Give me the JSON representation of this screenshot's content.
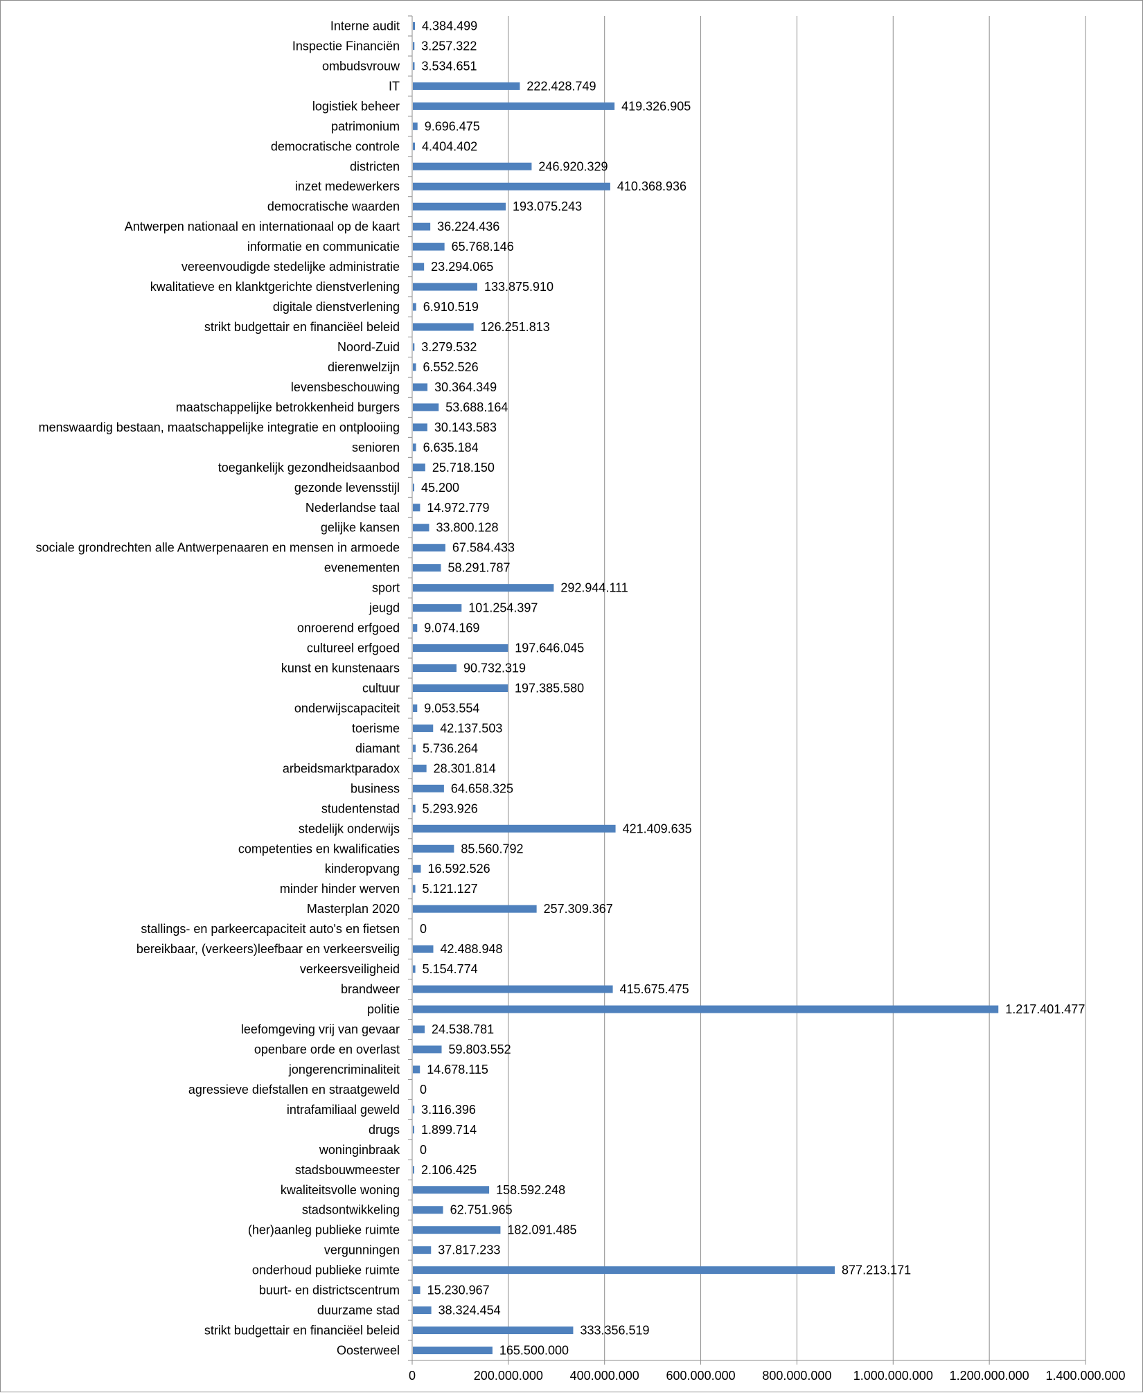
{
  "chart_data": {
    "type": "bar",
    "orientation": "horizontal",
    "title": "",
    "xlabel": "",
    "ylabel": "",
    "xlim": [
      0,
      1400000000
    ],
    "grid": true,
    "legend": "none",
    "bar_color": "#4f81bd",
    "x_ticks": [
      0,
      200000000,
      400000000,
      600000000,
      800000000,
      1000000000,
      1200000000,
      1400000000
    ],
    "x_tick_labels": [
      "0",
      "200.000.000",
      "400.000.000",
      "600.000.000",
      "800.000.000",
      "1.000.000.000",
      "1.200.000.000",
      "1.400.000.000"
    ],
    "categories": [
      "Interne audit",
      "Inspectie Financiën",
      "ombudsvrouw",
      "IT",
      "logistiek beheer",
      "patrimonium",
      "democratische controle",
      "districten",
      "inzet medewerkers",
      "democratische waarden",
      "Antwerpen nationaal en internationaal op de kaart",
      "informatie en communicatie",
      "vereenvoudigde stedelijke administratie",
      "kwalitatieve en klanktgerichte dienstverlening",
      "digitale dienstverlening",
      "strikt budgettair en financiëel beleid",
      "Noord-Zuid",
      "dierenwelzijn",
      "levensbeschouwing",
      "maatschappelijke betrokkenheid burgers",
      "menswaardig bestaan, maatschappelijke integratie en ontplooiing",
      "senioren",
      "toegankelijk gezondheidsaanbod",
      "gezonde levensstijl",
      "Nederlandse taal",
      "gelijke kansen",
      "sociale grondrechten alle Antwerpenaaren en mensen in armoede",
      "evenementen",
      "sport",
      "jeugd",
      "onroerend erfgoed",
      "cultureel erfgoed",
      "kunst en kunstenaars",
      "cultuur",
      "onderwijscapaciteit",
      "toerisme",
      "diamant",
      "arbeidsmarktparadox",
      "business",
      "studentenstad",
      "stedelijk onderwijs",
      "competenties en kwalificaties",
      "kinderopvang",
      "minder hinder werven",
      "Masterplan 2020",
      "stallings- en parkeercapaciteit auto's en fietsen",
      "bereikbaar, (verkeers)leefbaar en verkeersveilig",
      "verkeersveiligheid",
      "brandweer",
      "politie",
      "leefomgeving vrij van gevaar",
      "openbare orde en overlast",
      "jongerencriminaliteit",
      "agressieve diefstallen en straatgeweld",
      "intrafamiliaal geweld",
      "drugs",
      "woninginbraak",
      "stadsbouwmeester",
      "kwaliteitsvolle woning",
      "stadsontwikkeling",
      "(her)aanleg publieke ruimte",
      "vergunningen",
      "onderhoud publieke ruimte",
      "buurt- en districtscentrum",
      "duurzame stad",
      "strikt budgettair en financiëel beleid",
      "Oosterweel"
    ],
    "values": [
      4384499,
      3257322,
      3534651,
      222428749,
      419326905,
      9696475,
      4404402,
      246920329,
      410368936,
      193075243,
      36224436,
      65768146,
      23294065,
      133875910,
      6910519,
      126251813,
      3279532,
      6552526,
      30364349,
      53688164,
      30143583,
      6635184,
      25718150,
      45200,
      14972779,
      33800128,
      67584433,
      58291787,
      292944111,
      101254397,
      9074169,
      197646045,
      90732319,
      197385580,
      9053554,
      42137503,
      5736264,
      28301814,
      64658325,
      5293926,
      421409635,
      85560792,
      16592526,
      5121127,
      257309367,
      0,
      42488948,
      5154774,
      415675475,
      1217401477,
      24538781,
      59803552,
      14678115,
      0,
      3116396,
      1899714,
      0,
      2106425,
      158592248,
      62751965,
      182091485,
      37817233,
      877213171,
      15230967,
      38324454,
      333356519,
      165500000
    ],
    "value_labels": [
      "4.384.499",
      "3.257.322",
      "3.534.651",
      "222.428.749",
      "419.326.905",
      "9.696.475",
      "4.404.402",
      "246.920.329",
      "410.368.936",
      "193.075.243",
      "36.224.436",
      "65.768.146",
      "23.294.065",
      "133.875.910",
      "6.910.519",
      "126.251.813",
      "3.279.532",
      "6.552.526",
      "30.364.349",
      "53.688.164",
      "30.143.583",
      "6.635.184",
      "25.718.150",
      "45.200",
      "14.972.779",
      "33.800.128",
      "67.584.433",
      "58.291.787",
      "292.944.111",
      "101.254.397",
      "9.074.169",
      "197.646.045",
      "90.732.319",
      "197.385.580",
      "9.053.554",
      "42.137.503",
      "5.736.264",
      "28.301.814",
      "64.658.325",
      "5.293.926",
      "421.409.635",
      "85.560.792",
      "16.592.526",
      "5.121.127",
      "257.309.367",
      "0",
      "42.488.948",
      "5.154.774",
      "415.675.475",
      "1.217.401.477",
      "24.538.781",
      "59.803.552",
      "14.678.115",
      "0",
      "3.116.396",
      "1.899.714",
      "0",
      "2.106.425",
      "158.592.248",
      "62.751.965",
      "182.091.485",
      "37.817.233",
      "877.213.171",
      "15.230.967",
      "38.324.454",
      "333.356.519",
      "165.500.000"
    ]
  }
}
